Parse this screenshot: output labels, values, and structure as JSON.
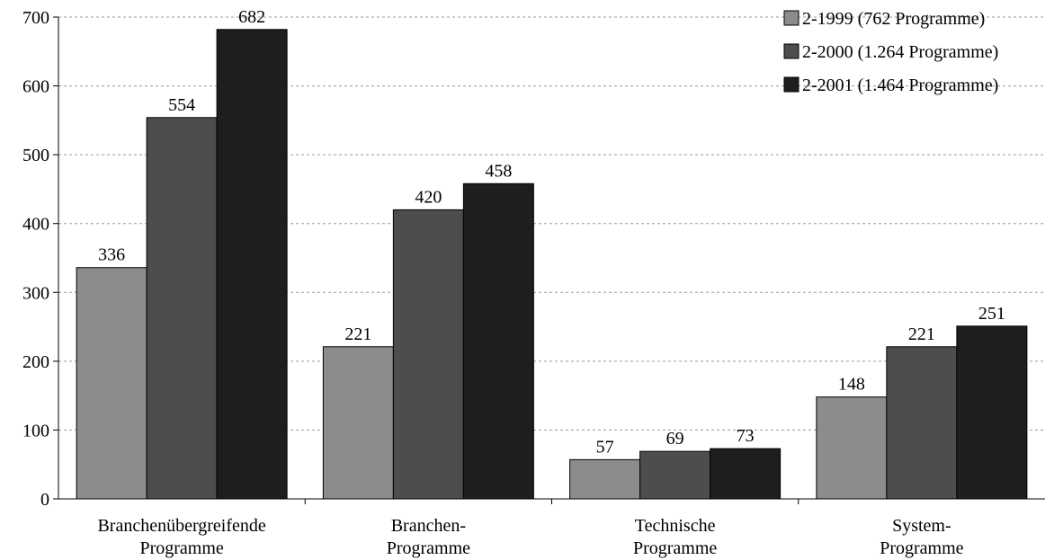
{
  "chart_data": {
    "type": "bar",
    "categories": [
      [
        "Branchenübergreifende",
        "Programme"
      ],
      [
        "Branchen-",
        "Programme"
      ],
      [
        "Technische",
        "Programme"
      ],
      [
        "System-",
        "Programme"
      ]
    ],
    "series": [
      {
        "name": "2-1999 (762 Programme)",
        "color": "#8c8c8c",
        "values": [
          336,
          221,
          57,
          148
        ]
      },
      {
        "name": "2-2000 (1.264 Programme)",
        "color": "#4d4d4d",
        "values": [
          554,
          420,
          69,
          221
        ]
      },
      {
        "name": "2-2001 (1.464 Programme)",
        "color": "#1e1e1e",
        "values": [
          682,
          458,
          73,
          251
        ]
      }
    ],
    "yticks": [
      0,
      100,
      200,
      300,
      400,
      500,
      600,
      700
    ],
    "ylim": [
      0,
      700
    ],
    "grid": "horizontal dashed",
    "legend_position": "top-right",
    "title": "",
    "xlabel": "",
    "ylabel": ""
  }
}
